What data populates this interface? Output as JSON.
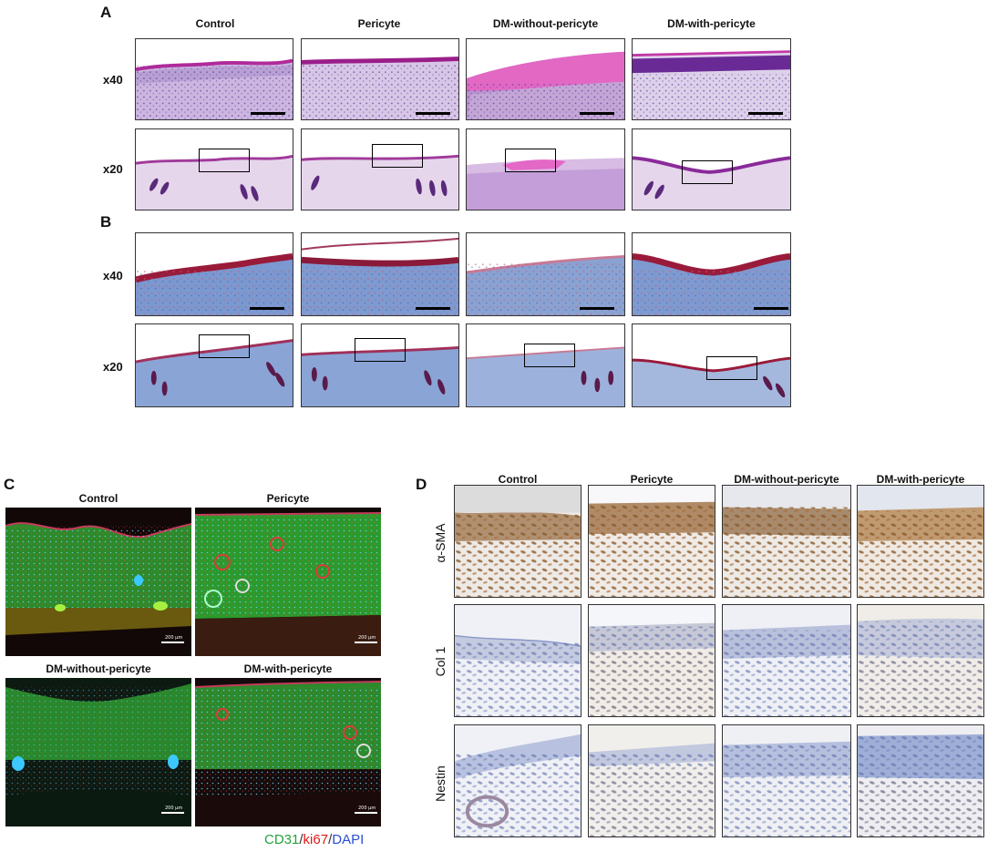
{
  "panels": {
    "A": {
      "label": "A",
      "columns": [
        "Control",
        "Pericyte",
        "DM-without-pericyte",
        "DM-with-pericyte"
      ],
      "rows": [
        "x40",
        "x20"
      ],
      "stain": "HE"
    },
    "B": {
      "label": "B",
      "rows": [
        "x40",
        "x20"
      ],
      "stain": "Masson"
    },
    "C": {
      "label": "C",
      "titles": [
        "Control",
        "Pericyte",
        "DM-without-pericyte",
        "DM-with-pericyte"
      ],
      "scale_text": "200 μm",
      "legend": {
        "cd31": "CD31",
        "sep1": "/",
        "ki67": "ki67",
        "sep2": "/",
        "dapi": "DAPI"
      },
      "legend_colors": {
        "cd31": "#22a33a",
        "ki67": "#e01818",
        "dapi": "#2a4fd0"
      }
    },
    "D": {
      "label": "D",
      "columns": [
        "Control",
        "Pericyte",
        "DM-without-pericyte",
        "DM-with-pericyte"
      ],
      "rows": [
        "α-SMA",
        "Col 1",
        "Nestin"
      ]
    }
  }
}
